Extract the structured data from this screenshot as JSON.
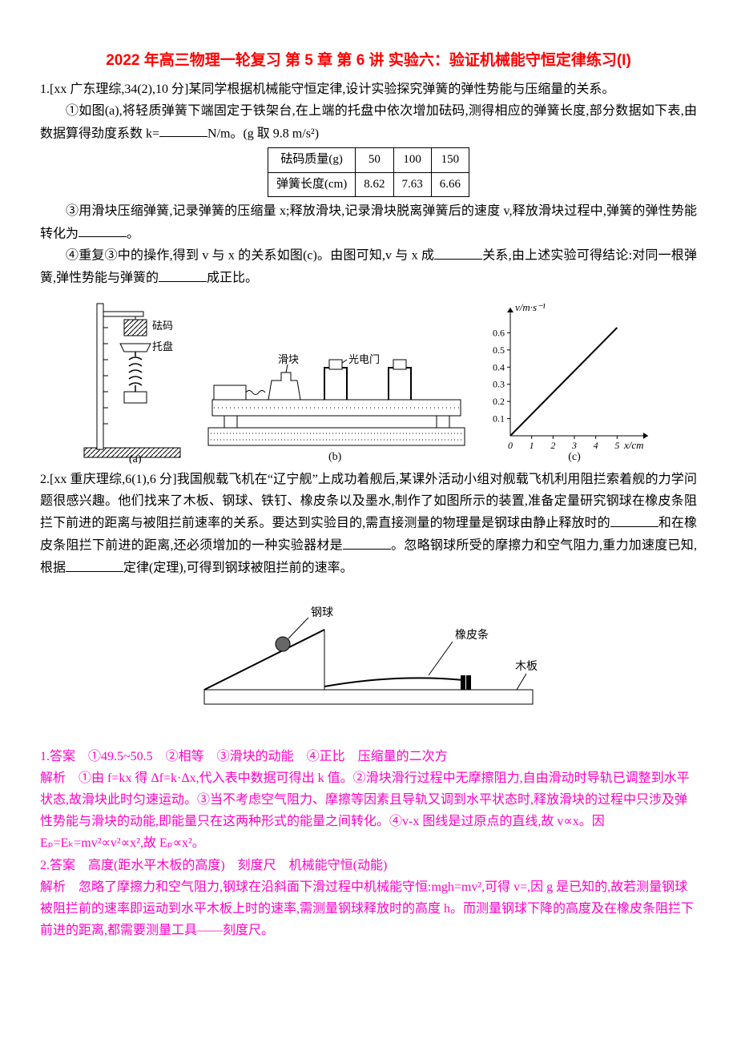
{
  "title": "2022 年高三物理一轮复习 第 5 章 第 6 讲 实验六：验证机械能守恒定律练习(I)",
  "q1": {
    "head": "1.[xx 广东理综,34(2),10 分]某同学根据机械能守恒定律,设计实验探究弹簧的弹性势能与压缩量的关系。",
    "p1a": "①如图(a),将轻质弹簧下端固定于铁架台,在上端的托盘中依次增加砝码,测得相应的弹簧长度,部分数据如下表,由数据算得劲度系数 k=",
    "p1b": "N/m。(g 取 9.8 m/s²)",
    "tbl_h1": "砝码质量(g)",
    "tbl_h2": "50",
    "tbl_h3": "100",
    "tbl_h4": "150",
    "tbl_r1": "弹簧长度(cm)",
    "tbl_r2": "8.62",
    "tbl_r3": "7.63",
    "tbl_r4": "6.66",
    "p3a": "③用滑块压缩弹簧,记录弹簧的压缩量 x;释放滑块,记录滑块脱离弹簧后的速度 v,释放滑块过程中,弹簧的弹性势能转化为",
    "p3b": "。",
    "p4a": "④重复③中的操作,得到 v 与 x 的关系如图(c)。由图可知,v 与 x 成",
    "p4b": "关系,由上述实验可得结论:对同一根弹簧,弹性势能与弹簧的",
    "p4c": "成正比。"
  },
  "fig": {
    "a": {
      "l_weight": "砝码",
      "l_plate": "托盘",
      "cap": "(a)"
    },
    "b": {
      "l_block": "滑块",
      "l_gate": "光电门",
      "cap": "(b)"
    },
    "c": {
      "ylabel": "v/m·s⁻¹",
      "xlabel": "x/cm",
      "cap": "(c)",
      "yticks": [
        "0.1",
        "0.2",
        "0.3",
        "0.4",
        "0.5",
        "0.6"
      ],
      "xticks": [
        "0",
        "1",
        "2",
        "3",
        "4",
        "5"
      ],
      "axis_color": "#000",
      "line_color": "#000",
      "bg": "#fff",
      "xunit": 5,
      "xmax": 6,
      "ymax": 0.7,
      "yunit": 0.1,
      "series": [
        [
          0,
          0
        ],
        [
          5,
          0.63
        ]
      ]
    }
  },
  "q2": {
    "head_a": "2.[xx 重庆理综,6(1),6 分]我国舰载飞机在“辽宁舰”上成功着舰后,某课外活动小组对舰载飞机利用阻拦索着舰的力学问题很感兴趣。他们找来了木板、钢球、铁钉、橡皮条以及墨水,制作了如图所示的装置,准备定量研究钢球在橡皮条阻拦下前进的距离与被阻拦前速率的关系。要达到实验目的,需直接测量的物理量是钢球由静止释放时的",
    "head_b": "和在橡皮条阻拦下前进的距离,还必须增加的一种实验器材是",
    "head_c": "。忽略钢球所受的摩擦力和空气阻力,重力加速度已知,根据",
    "head_d": "定律(定理),可得到钢球被阻拦前的速率。"
  },
  "fig2": {
    "ball": "钢球",
    "band": "橡皮条",
    "board": "木板"
  },
  "ans1": {
    "line1": "1.答案　①49.5~50.5　②相等　③滑块的动能　④正比　压缩量的二次方",
    "line2": "解析　①由 f=kx 得 Δf=k·Δx,代入表中数据可得出 k 值。②滑块滑行过程中无摩擦阻力,自由滑动时导轨已调整到水平状态,故滑块此时匀速运动。③当不考虑空气阻力、摩擦等因素且导轨又调到水平状态时,释放滑块的过程中只涉及弹性势能与滑块的动能,即能量只在这两种形式的能量之间转化。④v-x 图线是过原点的直线,故 v∝x。因 Eₚ=Eₖ=mv²∝v²∝x²,故 Eₚ∝x²。"
  },
  "ans2": {
    "line1": "2.答案　高度(距水平木板的高度)　刻度尺　机械能守恒(动能)",
    "line2": "解析　忽略了摩擦力和空气阻力,钢球在沿斜面下滑过程中机械能守恒:mgh=mv²,可得 v=,因 g 是已知的,故若测量钢球被阻拦前的速率即运动到水平木板上时的速率,需测量钢球释放时的高度 h。而测量钢球下降的高度及在橡皮条阻拦下前进的距离,都需要测量工具——刻度尺。"
  }
}
